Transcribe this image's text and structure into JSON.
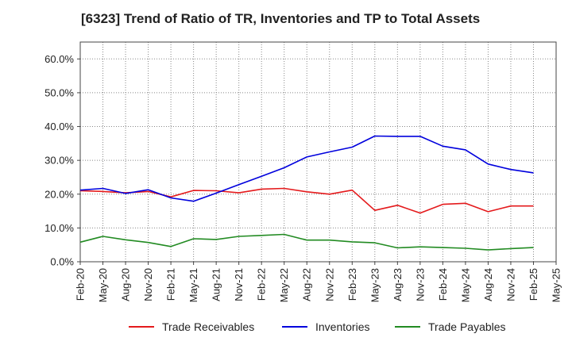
{
  "chart_data": {
    "type": "line",
    "title": "[6323]  Trend of Ratio of TR, Inventories and TP to Total Assets",
    "xlabel": "",
    "ylabel": "",
    "ylim": [
      0,
      65
    ],
    "yticks": [
      "0.0%",
      "10.0%",
      "20.0%",
      "30.0%",
      "40.0%",
      "50.0%",
      "60.0%"
    ],
    "ytick_values": [
      0,
      10,
      20,
      30,
      40,
      50,
      60
    ],
    "grid": true,
    "legend_position": "bottom",
    "categories": [
      "Feb-20",
      "May-20",
      "Aug-20",
      "Nov-20",
      "Feb-21",
      "May-21",
      "Aug-21",
      "Nov-21",
      "Feb-22",
      "May-22",
      "Aug-22",
      "Nov-22",
      "Feb-23",
      "May-23",
      "Aug-23",
      "Nov-23",
      "Feb-24",
      "May-24",
      "Aug-24",
      "Nov-24",
      "Feb-25",
      "May-25"
    ],
    "series": [
      {
        "name": "Trade Receivables",
        "color": "#e41a1c",
        "values": [
          21.0,
          20.8,
          20.4,
          20.8,
          19.2,
          21.1,
          21.0,
          20.4,
          21.5,
          21.7,
          20.7,
          20.0,
          21.2,
          15.2,
          16.7,
          14.4,
          17.0,
          17.3,
          14.8,
          16.5,
          16.5,
          null
        ]
      },
      {
        "name": "Inventories",
        "color": "#0000dd",
        "values": [
          21.2,
          21.7,
          20.2,
          21.3,
          18.9,
          17.9,
          20.3,
          22.8,
          25.3,
          27.8,
          31.0,
          32.5,
          33.9,
          37.2,
          37.1,
          37.1,
          34.2,
          33.1,
          28.9,
          27.3,
          26.3,
          null
        ]
      },
      {
        "name": "Trade Payables",
        "color": "#228b22",
        "values": [
          5.8,
          7.5,
          6.5,
          5.7,
          4.5,
          6.8,
          6.6,
          7.5,
          7.8,
          8.1,
          6.4,
          6.4,
          5.9,
          5.6,
          4.1,
          4.4,
          4.2,
          4.0,
          3.5,
          3.9,
          4.2,
          null
        ]
      }
    ]
  }
}
